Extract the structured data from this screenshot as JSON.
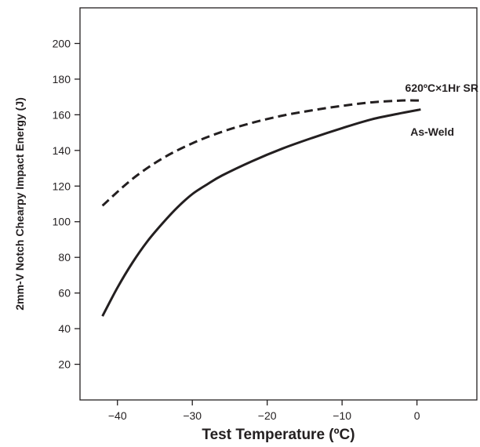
{
  "chart_data": {
    "type": "line",
    "title": "",
    "xlabel": "Test Temperature (ºC)",
    "ylabel": "2mm-V Notch Chearpy Impact Energy (J)",
    "xlim": [
      -45,
      8
    ],
    "ylim": [
      0,
      220
    ],
    "xticks": [
      -40,
      -30,
      -20,
      -10,
      0
    ],
    "xtick_labels": [
      "−40",
      "−30",
      "−20",
      "−10",
      "0"
    ],
    "yticks": [
      20,
      40,
      60,
      80,
      100,
      120,
      140,
      160,
      180,
      200
    ],
    "ytick_labels": [
      "20",
      "40",
      "60",
      "80",
      "100",
      "120",
      "140",
      "160",
      "180",
      "200"
    ],
    "grid": false,
    "legend": "none",
    "series": [
      {
        "name": "620ºC×1Hr SR",
        "style": "dashed",
        "color": "#231f20",
        "x": [
          -42,
          -38,
          -34,
          -30,
          -26,
          -22,
          -18,
          -14,
          -10,
          -6,
          -2,
          0.5
        ],
        "y": [
          109,
          124,
          135.5,
          144,
          150.5,
          155.5,
          159.5,
          162.5,
          165,
          167,
          168,
          168
        ]
      },
      {
        "name": "As-Weld",
        "style": "solid",
        "color": "#231f20",
        "x": [
          -42,
          -40,
          -38,
          -36,
          -34,
          -32,
          -30,
          -28,
          -26,
          -22,
          -18,
          -14,
          -10,
          -6,
          -2,
          0.5
        ],
        "y": [
          47,
          63,
          77,
          89,
          99,
          108,
          115.5,
          121,
          126,
          134,
          141,
          147,
          152.5,
          157.5,
          161,
          163
        ]
      }
    ]
  }
}
